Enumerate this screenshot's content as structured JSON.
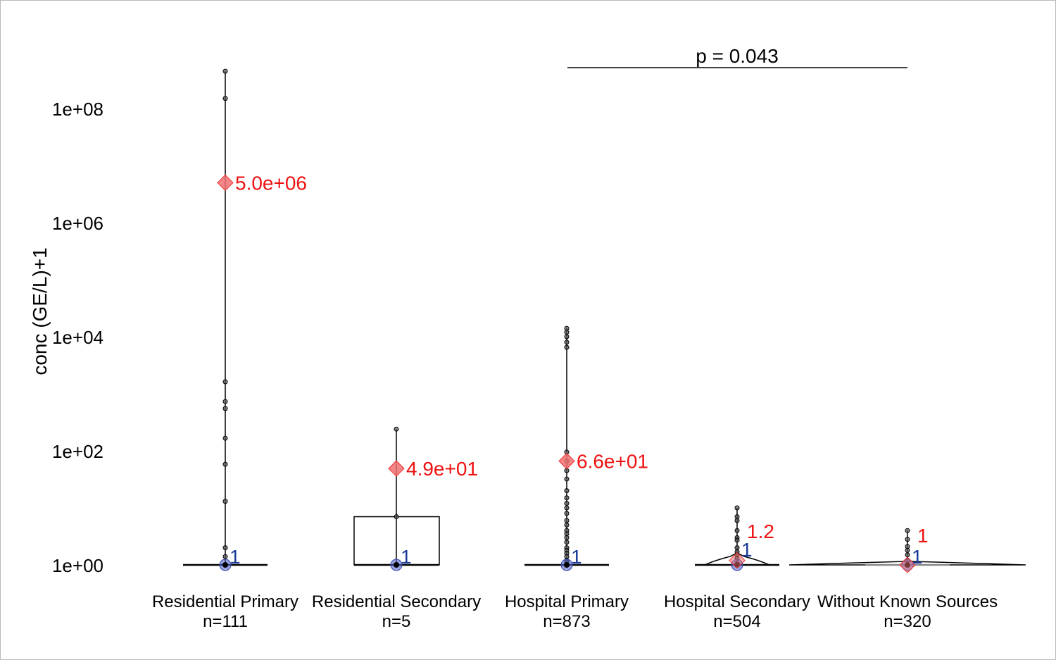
{
  "chart_data": {
    "type": "box-violin",
    "ylabel": "conc (GE/L)+1",
    "yscale": "log10",
    "ylim": [
      0.5,
      1000000000.0
    ],
    "yticks": [
      {
        "value": 1,
        "label": "1e+00"
      },
      {
        "value": 100,
        "label": "1e+02"
      },
      {
        "value": 10000,
        "label": "1e+04"
      },
      {
        "value": 1000000,
        "label": "1e+06"
      },
      {
        "value": 100000000,
        "label": "1e+08"
      }
    ],
    "groups": [
      {
        "name": "Residential Primary",
        "n_label": "n=111",
        "median": 1,
        "median_label": "1",
        "mean": 5000000.0,
        "mean_label": "5.0e+06",
        "q3": 1,
        "points": [
          450000000.0,
          150000000.0,
          1620,
          730,
          550,
          166,
          58,
          13,
          2,
          1.4,
          1
        ]
      },
      {
        "name": "Residential Secondary",
        "n_label": "n=5",
        "median": 1,
        "median_label": "1",
        "mean": 49,
        "mean_label": "4.9e+01",
        "q3": 7,
        "points": [
          240,
          7,
          1
        ]
      },
      {
        "name": "Hospital Primary",
        "n_label": "n=873",
        "median": 1,
        "median_label": "1",
        "mean": 66,
        "mean_label": "6.6e+01",
        "q3": 1,
        "points": [
          14000,
          12000,
          10000,
          8000,
          6500,
          95,
          66,
          45,
          32,
          20,
          15,
          12,
          10,
          8,
          6,
          5,
          4,
          3.5,
          3,
          2.5,
          2,
          1.8,
          1.6,
          1.4,
          1.2,
          1.1,
          1
        ]
      },
      {
        "name": "Hospital Secondary",
        "n_label": "n=504",
        "median": 1,
        "median_label": "1",
        "mean": 1.2,
        "mean_label": "1.2",
        "q3": 1,
        "points": [
          10,
          7,
          6,
          4,
          3,
          2.7,
          2,
          1.7,
          1.5,
          1.3,
          1.1,
          1
        ]
      },
      {
        "name": "Without Known Sources",
        "n_label": "n=320",
        "median": 1,
        "median_label": "1",
        "mean": 1,
        "mean_label": "1",
        "q3": 1,
        "points": [
          4,
          2.8,
          2.1,
          1.8,
          1.5,
          1.2,
          1
        ]
      }
    ],
    "annotation": {
      "text": "p = 0.043",
      "from_group": "Hospital Primary",
      "to_group": "Without Known Sources"
    },
    "colors": {
      "mean": "#ee1111",
      "median": "#1a3a9a",
      "median_fill": "#5566cc",
      "points": "#000000"
    }
  }
}
